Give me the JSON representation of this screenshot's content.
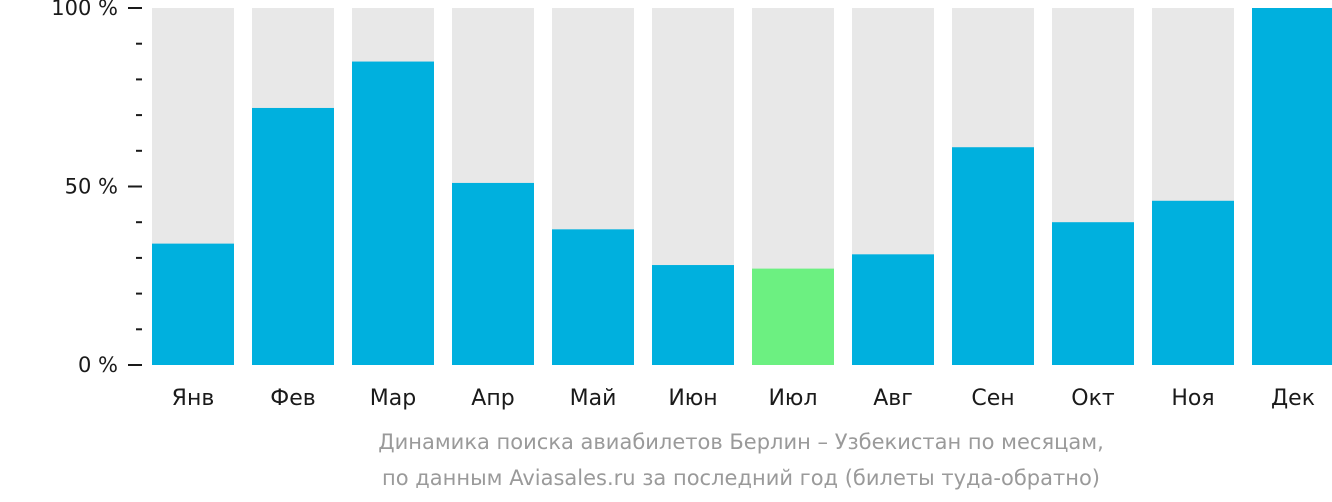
{
  "chart_data": {
    "type": "bar",
    "title": "",
    "xlabel": "",
    "ylabel": "",
    "categories": [
      "Янв",
      "Фев",
      "Мар",
      "Апр",
      "Май",
      "Июн",
      "Июл",
      "Авг",
      "Сен",
      "Окт",
      "Ноя",
      "Дек"
    ],
    "values": [
      34,
      72,
      85,
      51,
      38,
      28,
      27,
      31,
      61,
      40,
      46,
      100
    ],
    "highlight_index": 6,
    "ylim": [
      0,
      100
    ],
    "yticks": [
      {
        "value": 0,
        "label": "0 %"
      },
      {
        "value": 50,
        "label": "50 %"
      },
      {
        "value": 100,
        "label": "100 %"
      }
    ],
    "minor_tick_step": 10,
    "grid": false,
    "colors": {
      "bar": "#00b0de",
      "highlight": "#6cf081",
      "background_bar": "#e8e8e8",
      "axis_text": "#1a1a1a"
    }
  },
  "caption": {
    "line1": "Динамика поиска авиабилетов Берлин – Узбекистан по месяцам,",
    "line2": "по данным Aviasales.ru за последний год (билеты туда-обратно)"
  }
}
